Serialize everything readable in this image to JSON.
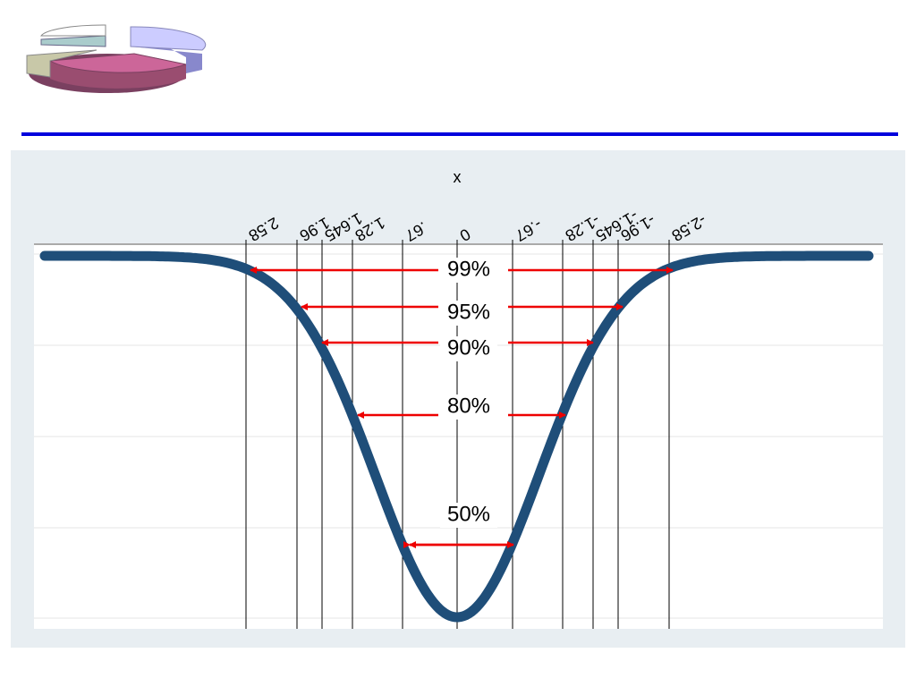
{
  "axis_label": "x",
  "z_labels": [
    "2.58",
    "1.96",
    "1.645",
    "1.28",
    ".67",
    "0",
    "-.67",
    "-1.28",
    "-1.645",
    "-1.96",
    "-2.58"
  ],
  "intervals": [
    "99%",
    "95%",
    "90%",
    "80%",
    "50%"
  ]
}
